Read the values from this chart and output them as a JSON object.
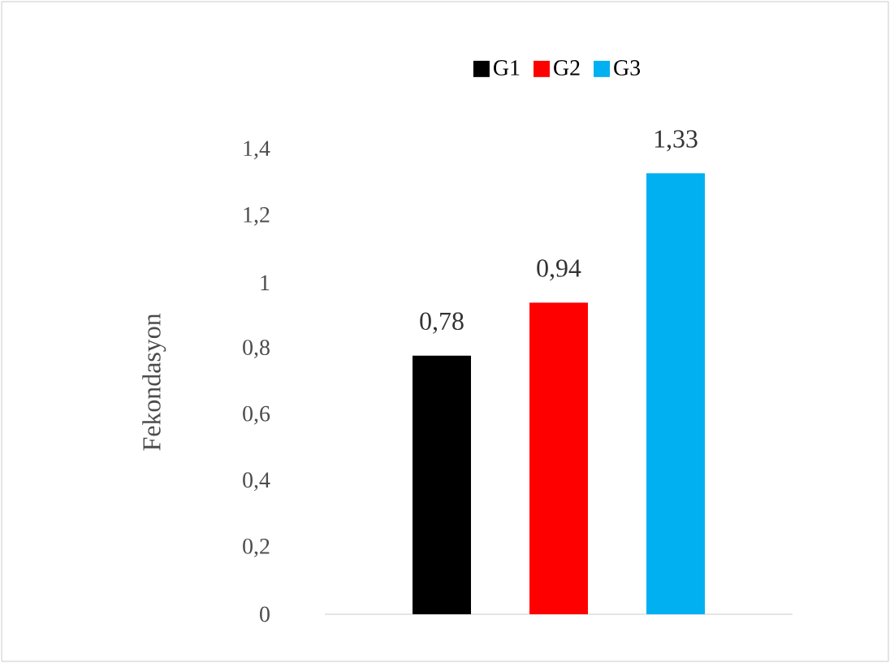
{
  "chart_data": {
    "type": "bar",
    "ylabel": "Fekondasyon",
    "categories": [
      null,
      null,
      null
    ],
    "series": [
      {
        "name": "G1",
        "color": "#000000",
        "values": [
          0.78,
          null,
          null
        ],
        "value_labels": [
          "0,78",
          null,
          null
        ]
      },
      {
        "name": "G2",
        "color": "#ff0000",
        "values": [
          null,
          0.94,
          null
        ],
        "value_labels": [
          null,
          "0,94",
          null
        ]
      },
      {
        "name": "G3",
        "color": "#00b0f0",
        "values": [
          null,
          null,
          1.33
        ],
        "value_labels": [
          null,
          null,
          "1,33"
        ]
      }
    ],
    "ylim": [
      0,
      1.4
    ],
    "yticks": [
      0,
      {
        "value": 0.2,
        "label": "0,2"
      },
      {
        "value": 0.4,
        "label": "0,4"
      },
      {
        "value": 0.6,
        "label": "0,6"
      },
      {
        "value": 0.8,
        "label": "0,8"
      },
      1,
      {
        "value": 1.2,
        "label": "1,2"
      },
      {
        "value": 1.4,
        "label": "1,4"
      }
    ],
    "grid": false,
    "legend": "top"
  }
}
